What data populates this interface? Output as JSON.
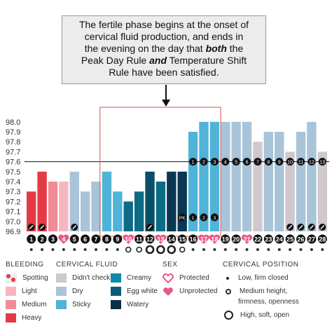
{
  "callout": {
    "line1": "The fertile phase begins at the onset of",
    "line2": "cervical fluid production, and ends in",
    "line3_a": "the evening on the day that ",
    "line3_b": "both",
    "line3_c": " the",
    "line4_a": "Peak Day Rule ",
    "line4_b": "and",
    "line4_c": " Temperature Shift",
    "line5": "Rule have been satisfied."
  },
  "chart_data": {
    "type": "bar",
    "ylim": [
      96.9,
      98.1
    ],
    "yticks": [
      "98.0",
      "97.9",
      "97.8",
      "97.7",
      "97.6",
      "97.5",
      "97.4",
      "97.3",
      "97.2",
      "97.1",
      "97.0",
      "96.9"
    ],
    "coverline": 97.6,
    "days": [
      "1",
      "2",
      "3",
      "4",
      "5",
      "6",
      "7",
      "8",
      "9",
      "10",
      "11",
      "12",
      "13",
      "14",
      "15",
      "16",
      "17",
      "18",
      "19",
      "20",
      "21",
      "22",
      "23",
      "24",
      "25",
      "26",
      "27",
      "28"
    ],
    "values": [
      97.3,
      97.5,
      97.4,
      97.4,
      97.5,
      97.3,
      97.4,
      97.5,
      97.3,
      97.2,
      97.3,
      97.5,
      97.4,
      97.5,
      97.5,
      97.9,
      98.0,
      98.0,
      98.0,
      98.0,
      98.0,
      97.8,
      97.9,
      97.9,
      97.7,
      97.9,
      98.0,
      97.7
    ],
    "colors": [
      "#e63946",
      "#e63946",
      "#f28b96",
      "#f7b6be",
      "#a9c4d8",
      "#a9c4d8",
      "#a9c4d8",
      "#4fb4d8",
      "#4fb4d8",
      "#0e6b86",
      "#0e6b86",
      "#0a4f68",
      "#0e6b86",
      "#0a3852",
      "#0a3852",
      "#4fb4d8",
      "#4fb4d8",
      "#4fb4d8",
      "#a9c4d8",
      "#a9c4d8",
      "#a9c4d8",
      "#cfc9cd",
      "#a9c4d8",
      "#a9c4d8",
      "#cfc9cd",
      "#a9c4d8",
      "#a9c4d8",
      "#cfc9cd"
    ],
    "day_badges": [
      "dark",
      "dark",
      "dark",
      "pink",
      "dark",
      "dark",
      "dark",
      "dark",
      "dark",
      "pink",
      "dark",
      "dark",
      "pink",
      "dark",
      "dark",
      "dark",
      "pink",
      "pink",
      "dark",
      "dark",
      "pink",
      "dark",
      "dark",
      "dark",
      "dark",
      "dark",
      "dark",
      "dark"
    ],
    "high_temp_labels": {
      "16": "1",
      "17": "2",
      "18": "3",
      "19": "4",
      "20": "5",
      "21": "6",
      "22": "7",
      "23": "8",
      "24": "9",
      "25": "10",
      "26": "11",
      "27": "12",
      "28": "13"
    },
    "post_peak_labels": {
      "15": "PK",
      "16": "1",
      "17": "2",
      "18": "3"
    },
    "spotting_days": [
      1,
      2,
      5,
      12,
      25,
      26,
      27,
      28
    ],
    "cervical_position": [
      "1",
      "1",
      "1",
      "1",
      "1",
      "1",
      "1",
      "1",
      "1",
      "2",
      "2",
      "3",
      "3",
      "3",
      "2",
      "1",
      "1",
      "1",
      "1",
      "1",
      "1",
      "1",
      "1",
      "1",
      "1",
      "1",
      "1",
      "1"
    ],
    "fertile_window": [
      8,
      18
    ]
  },
  "legend": {
    "bleeding": {
      "title": "BLEEDING",
      "items": [
        {
          "label": "Spotting",
          "color": "#e63946"
        },
        {
          "label": "Light",
          "color": "#f7b6be"
        },
        {
          "label": "Medium",
          "color": "#f28b96"
        },
        {
          "label": "Heavy",
          "color": "#e63946"
        }
      ]
    },
    "cervical_fluid": {
      "title": "CERVICAL FLUID",
      "items": [
        {
          "label": "Didn't check",
          "color": "#cfc9cd"
        },
        {
          "label": "Dry",
          "color": "#a9c4d8"
        },
        {
          "label": "Sticky",
          "color": "#4fb4d8"
        },
        {
          "label": "Creamy",
          "color": "#0e8aa8"
        },
        {
          "label": "Egg white",
          "color": "#0a5c78"
        },
        {
          "label": "Watery",
          "color": "#0a2f45"
        }
      ]
    },
    "sex": {
      "title": "SEX",
      "items": [
        {
          "label": "Protected",
          "color": "#e85a86"
        },
        {
          "label": "Unprotected",
          "color": "#f2a6bd"
        }
      ]
    },
    "cervical_position": {
      "title": "CERVICAL POSITION",
      "items": [
        {
          "label": "Low, firm closed"
        },
        {
          "label": "Medium height,"
        },
        {
          "label": "firmness, openness"
        },
        {
          "label": "High, soft, open"
        }
      ]
    }
  }
}
